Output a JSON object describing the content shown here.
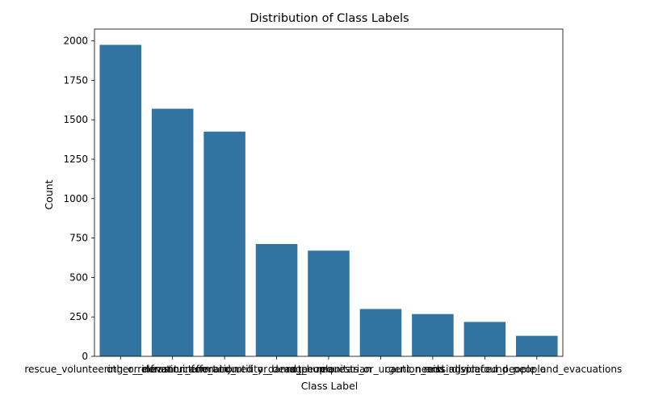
{
  "chart_data": {
    "type": "bar",
    "title": "Distribution of Class Labels",
    "xlabel": "Class Label",
    "ylabel": "Count",
    "categories": [
      "rescue_volunteering_or_donation_effort",
      "other_relevant_information",
      "infrastructure_and_utility_damage",
      "injured_or_dead_people",
      "not_humanitarian",
      "requests_or_urgent_needs",
      "caution_and_advice",
      "missing_or_found_people",
      "displaced_people_and_evacuations"
    ],
    "values": [
      1975,
      1570,
      1425,
      712,
      670,
      300,
      268,
      218,
      130
    ],
    "ylim": [
      0,
      2075
    ],
    "yticks": [
      0,
      250,
      500,
      750,
      1000,
      1250,
      1500,
      1750,
      2000
    ],
    "grid": false,
    "bar_color": "#3274a1"
  }
}
